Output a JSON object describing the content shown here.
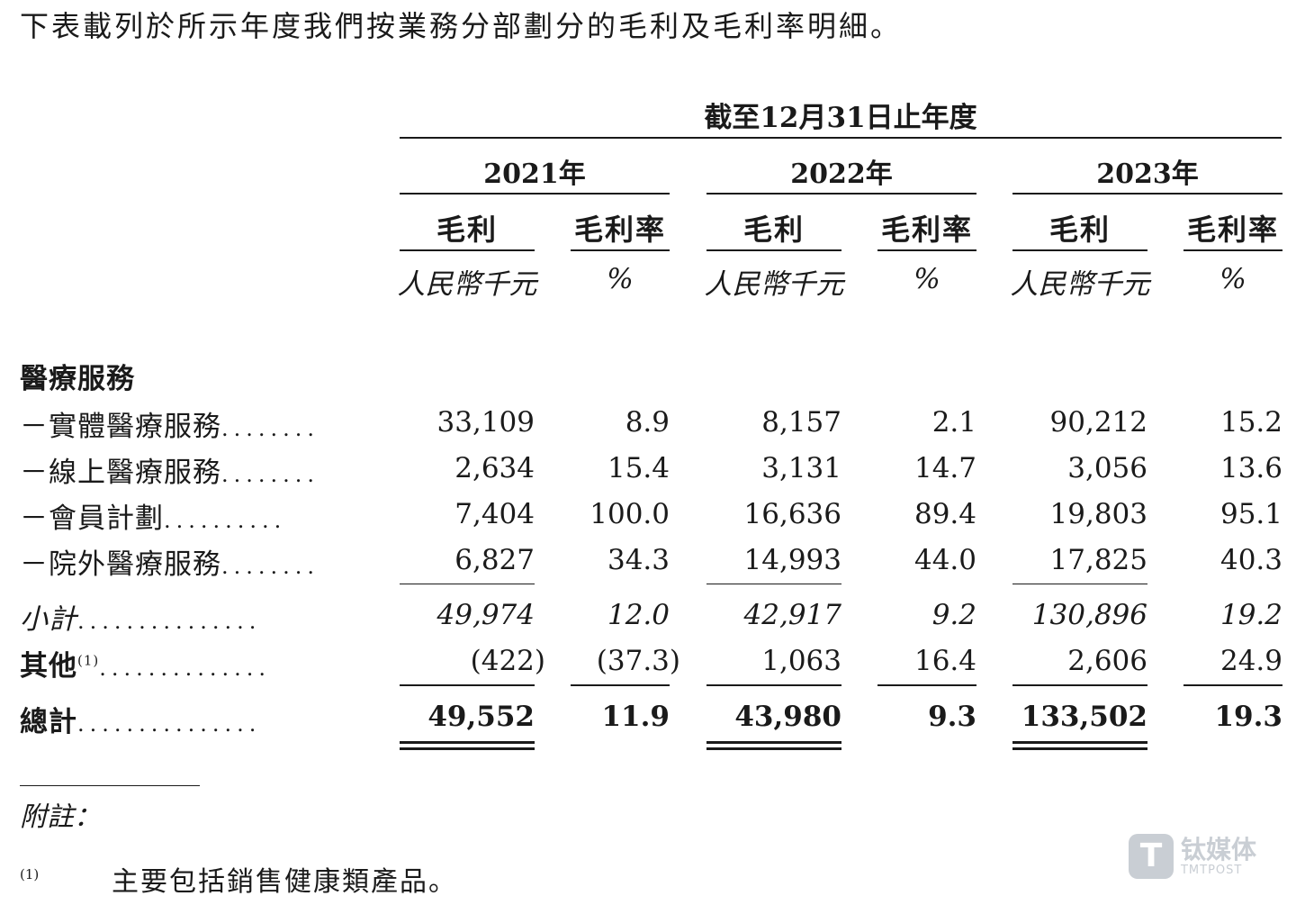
{
  "intro": "下表載列於所示年度我們按業務分部劃分的毛利及毛利率明細。",
  "period_header": "截至12月31日止年度",
  "years": [
    "2021年",
    "2022年",
    "2023年"
  ],
  "column_labels": {
    "gross_profit": "毛利",
    "gross_margin": "毛利率"
  },
  "units": {
    "gross_profit": "人民幣千元",
    "gross_margin": "%"
  },
  "section_title": "醫療服務",
  "rows": [
    {
      "label": "－實體醫療服務",
      "leader": "........",
      "values": [
        "33,109",
        "8.9",
        "8,157",
        "2.1",
        "90,212",
        "15.2"
      ]
    },
    {
      "label": "－線上醫療服務",
      "leader": "........",
      "values": [
        "2,634",
        "15.4",
        "3,131",
        "14.7",
        "3,056",
        "13.6"
      ]
    },
    {
      "label": "－會員計劃",
      "leader": "..........",
      "values": [
        "7,404",
        "100.0",
        "16,636",
        "89.4",
        "19,803",
        "95.1"
      ]
    },
    {
      "label": "－院外醫療服務",
      "leader": "........",
      "values": [
        "6,827",
        "34.3",
        "14,993",
        "44.0",
        "17,825",
        "40.3"
      ]
    }
  ],
  "subtotal": {
    "label": "小計",
    "leader": "...............",
    "values": [
      "49,974",
      "12.0",
      "42,917",
      "9.2",
      "130,896",
      "19.2"
    ]
  },
  "other": {
    "label": "其他",
    "note_mark": "(1)",
    "leader": "..............",
    "values": [
      "(422)",
      "(37.3)",
      "1,063",
      "16.4",
      "2,606",
      "24.9"
    ]
  },
  "total": {
    "label": "總計",
    "leader": "...............",
    "values": [
      "49,552",
      "11.9",
      "43,980",
      "9.3",
      "133,502",
      "19.3"
    ]
  },
  "notes_heading": "附註：",
  "footnotes": [
    {
      "mark": "(1)",
      "text": "主要包括銷售健康類產品。"
    }
  ],
  "watermark": {
    "icon": "T",
    "name_cn": "钛媒体",
    "name_en": "TMTPOST"
  }
}
